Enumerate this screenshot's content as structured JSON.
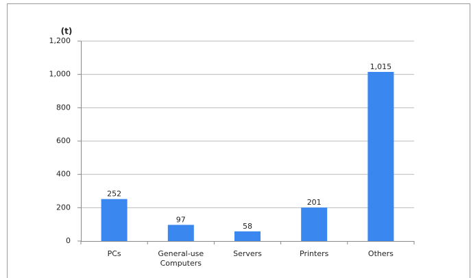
{
  "chart_data": {
    "type": "bar",
    "y_label": "(t)",
    "categories": [
      "PCs",
      "General-use Computers",
      "Servers",
      "Printers",
      "Others"
    ],
    "values": [
      252,
      97,
      58,
      201,
      1015
    ],
    "value_labels": [
      "252",
      "97",
      "58",
      "201",
      "1,015"
    ],
    "color": "#3a87f0",
    "ylim": [
      0,
      1200
    ],
    "yticks": [
      0,
      200,
      400,
      600,
      800,
      {
        "value": 1000,
        "label": "1,000"
      },
      {
        "value": 1200,
        "label": "1,200"
      }
    ],
    "grid": true
  }
}
